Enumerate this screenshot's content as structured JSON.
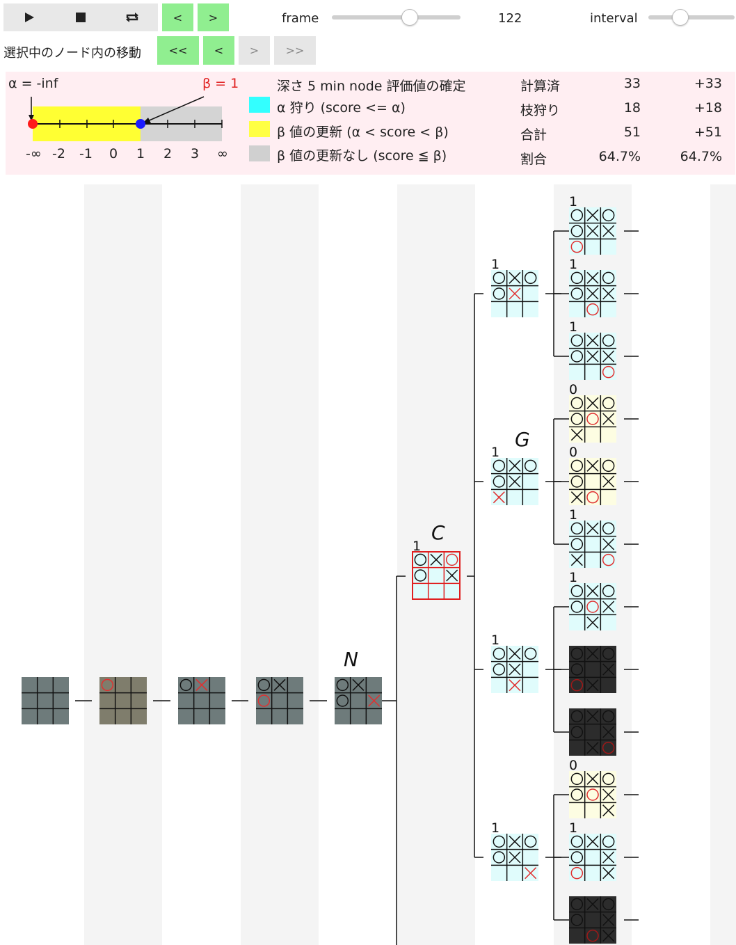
{
  "toolbar": {
    "play_icon": "play-icon",
    "stop_icon": "stop-icon",
    "repeat_icon": "repeat-icon",
    "prev_label": "<",
    "next_label": ">",
    "frame_label": "frame",
    "frame_value": "122",
    "frame_slider_fraction": 0.6,
    "interval_label": "interval",
    "interval_slider_fraction": 0.35
  },
  "node_nav": {
    "label": "選択中のノード内の移動",
    "first_label": "<<",
    "prev_label": "<",
    "next_label": ">",
    "last_label": ">>"
  },
  "window": {
    "alpha_label": "α = -inf",
    "beta_label": "β = 1",
    "ticks": [
      "-∞",
      "-2",
      "-1",
      "0",
      "1",
      "2",
      "3",
      "∞"
    ],
    "alpha_value": "-inf",
    "beta_value": 1
  },
  "legend": {
    "title": "深さ 5 min node 評価値の確定",
    "items": [
      {
        "color": "#33ffff",
        "label": "α 狩り (score <= α)"
      },
      {
        "color": "#ffff44",
        "label": "β 値の更新 (α < score < β)"
      },
      {
        "color": "#d0d0d0",
        "label": "β 値の更新なし (score ≦ β)"
      }
    ]
  },
  "stats": {
    "rows": [
      {
        "label": "計算済",
        "value": "33",
        "delta": "+33"
      },
      {
        "label": "枝狩り",
        "value": "18",
        "delta": "+18"
      },
      {
        "label": "合計",
        "value": "51",
        "delta": "+51"
      },
      {
        "label": "割合",
        "value": "64.7%",
        "delta": "64.7%"
      }
    ]
  },
  "tree": {
    "path_labels": {
      "n": "N",
      "c": "C",
      "g": "G"
    },
    "scores": {
      "c": "1",
      "d1": "1",
      "d2": "1",
      "d3": "1",
      "d4": "1",
      "l1": "1",
      "l2": "1",
      "l3": "1",
      "l4": "0",
      "l5": "0",
      "l6": "1",
      "l7": "1",
      "l10": "0",
      "l11": "1"
    },
    "colors": {
      "cyan": "#e0fcfc",
      "yellow": "#fdfde2",
      "path": "#6e7b7b",
      "dark": "#2c2c2c",
      "mark_red": "#e03030"
    }
  }
}
